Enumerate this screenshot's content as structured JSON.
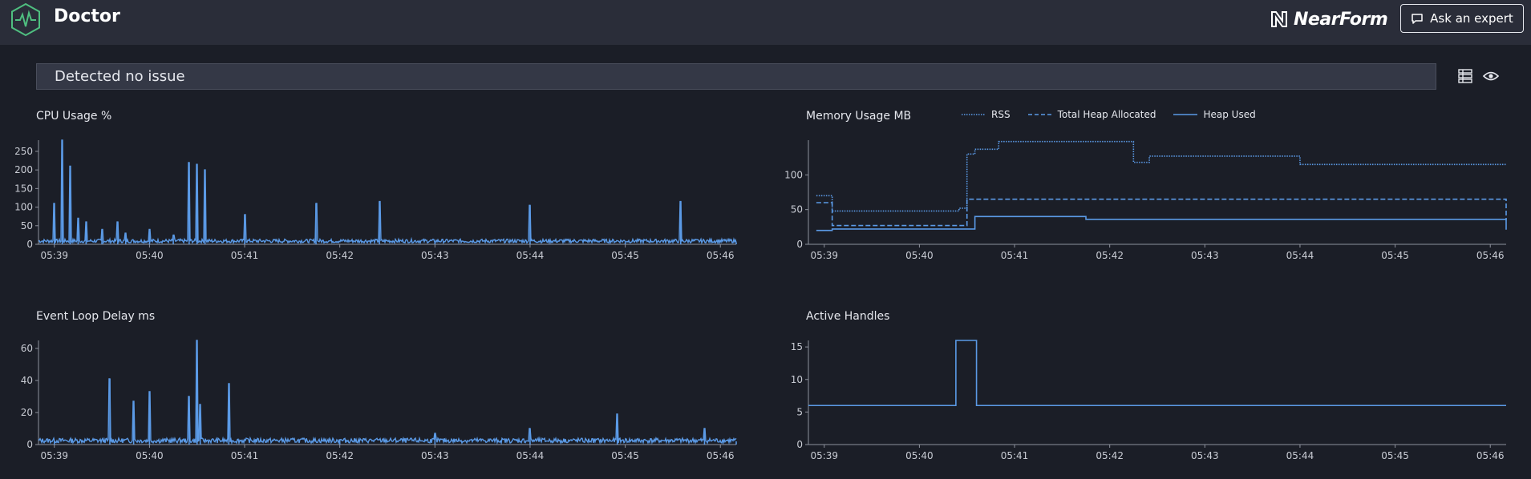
{
  "header": {
    "app_title": "Doctor",
    "brand": "NearForm",
    "ask_button": "Ask an expert",
    "logo_icon": "heartbeat-hexagon-icon",
    "ask_icon": "chat-bubble-icon"
  },
  "status": {
    "message": "Detected no issue",
    "toolbar_icons": [
      "grid-view-icon",
      "eye-icon"
    ]
  },
  "colors": {
    "background": "#1b1e27",
    "header": "#2a2d39",
    "line": "#5b9ae6",
    "logo": "#4fbf80"
  },
  "charts": {
    "cpu": {
      "title": "CPU Usage %",
      "y_ticks": [
        "0",
        "50",
        "100",
        "150",
        "200",
        "250"
      ],
      "x_ticks": [
        "05:39",
        "05:40",
        "05:41",
        "05:42",
        "05:43",
        "05:44",
        "05:45",
        "05:46"
      ]
    },
    "memory": {
      "title": "Memory Usage MB",
      "y_ticks": [
        "0",
        "50",
        "100"
      ],
      "x_ticks": [
        "05:39",
        "05:40",
        "05:41",
        "05:42",
        "05:43",
        "05:44",
        "05:45",
        "05:46"
      ],
      "legend": [
        "RSS",
        "Total Heap Allocated",
        "Heap Used"
      ]
    },
    "eventloop": {
      "title": "Event Loop Delay ms",
      "y_ticks": [
        "0",
        "20",
        "40",
        "60"
      ],
      "x_ticks": [
        "05:39",
        "05:40",
        "05:41",
        "05:42",
        "05:43",
        "05:44",
        "05:45",
        "05:46"
      ]
    },
    "handles": {
      "title": "Active Handles",
      "y_ticks": [
        "0",
        "5",
        "10",
        "15"
      ],
      "x_ticks": [
        "05:39",
        "05:40",
        "05:41",
        "05:42",
        "05:43",
        "05:44",
        "05:45",
        "05:46"
      ]
    }
  },
  "chart_data": [
    {
      "type": "line",
      "title": "CPU Usage %",
      "x_range": [
        "05:38:50",
        "05:46:10"
      ],
      "ylim": [
        0,
        280
      ],
      "series": [
        {
          "x": [
            "05:39:00",
            "05:39:05",
            "05:39:10",
            "05:39:15",
            "05:39:20",
            "05:39:30",
            "05:39:40",
            "05:39:45",
            "05:40:00",
            "05:40:15",
            "05:40:25",
            "05:40:30",
            "05:40:35",
            "05:41:00",
            "05:41:45",
            "05:42:25",
            "05:43:00",
            "05:44:00",
            "05:45:00",
            "05:45:35",
            "05:46:10"
          ],
          "y": [
            110,
            280,
            210,
            70,
            60,
            40,
            60,
            30,
            40,
            25,
            220,
            215,
            200,
            80,
            110,
            115,
            5,
            105,
            5,
            115,
            5
          ]
        }
      ]
    },
    {
      "type": "line",
      "title": "Memory Usage MB",
      "x_range": [
        "05:38:50",
        "05:46:10"
      ],
      "ylim": [
        0,
        150
      ],
      "series": [
        {
          "name": "RSS",
          "x": [
            "05:38:55",
            "05:39:05",
            "05:40:25",
            "05:40:30",
            "05:40:35",
            "05:40:50",
            "05:41:45",
            "05:42:15",
            "05:42:25",
            "05:44:00",
            "05:46:10"
          ],
          "y": [
            70,
            48,
            52,
            130,
            137,
            148,
            148,
            118,
            127,
            115,
            115
          ]
        },
        {
          "name": "Total Heap Allocated",
          "x": [
            "05:38:55",
            "05:39:05",
            "05:40:25",
            "05:40:30",
            "05:41:45",
            "05:46:10"
          ],
          "y": [
            60,
            27,
            27,
            65,
            65,
            35
          ]
        },
        {
          "name": "Heap Used",
          "x": [
            "05:38:55",
            "05:39:05",
            "05:40:25",
            "05:40:35",
            "05:41:45",
            "05:46:10"
          ],
          "y": [
            20,
            22,
            22,
            40,
            36,
            21
          ]
        }
      ]
    },
    {
      "type": "line",
      "title": "Event Loop Delay ms",
      "x_range": [
        "05:38:50",
        "05:46:10"
      ],
      "ylim": [
        0,
        65
      ],
      "series": [
        {
          "x": [
            "05:39:00",
            "05:39:35",
            "05:39:50",
            "05:40:00",
            "05:40:25",
            "05:40:30",
            "05:40:32",
            "05:40:50",
            "05:42:00",
            "05:43:00",
            "05:44:00",
            "05:44:55",
            "05:45:50",
            "05:46:10"
          ],
          "y": [
            2,
            41,
            27,
            33,
            30,
            65,
            25,
            38,
            3,
            7,
            10,
            19,
            10,
            2
          ]
        }
      ]
    },
    {
      "type": "line",
      "title": "Active Handles",
      "x_range": [
        "05:38:50",
        "05:46:10"
      ],
      "ylim": [
        0,
        16
      ],
      "series": [
        {
          "x": [
            "05:38:50",
            "05:40:22",
            "05:40:23",
            "05:40:35",
            "05:40:36",
            "05:46:10"
          ],
          "y": [
            6,
            6,
            16,
            16,
            6,
            6
          ]
        }
      ]
    }
  ]
}
